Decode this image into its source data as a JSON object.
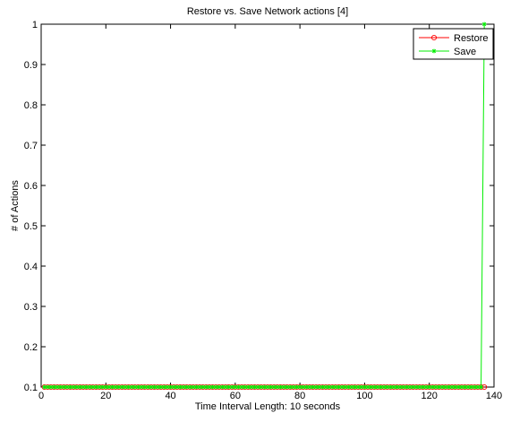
{
  "chart_data": {
    "type": "line",
    "title": "Restore vs. Save Network actions [4]",
    "xlabel": "Time Interval Length: 10 seconds",
    "ylabel": "# of Actions",
    "xlim": [
      0,
      140
    ],
    "ylim": [
      0.1,
      1
    ],
    "xticks": [
      0,
      20,
      40,
      60,
      80,
      100,
      120,
      140
    ],
    "xtick_labels": [
      "0",
      "20",
      "40",
      "60",
      "80",
      "100",
      "120",
      "140"
    ],
    "yticks": [
      0.1,
      0.2,
      0.3,
      0.4,
      0.5,
      0.6,
      0.7,
      0.8,
      0.9,
      1
    ],
    "ytick_labels": [
      "0.1",
      "0.2",
      "0.3",
      "0.4",
      "0.5",
      "0.6",
      "0.7",
      "0.8",
      "0.9",
      "1"
    ],
    "grid": false,
    "legend_position": "top-right",
    "x_range": [
      1,
      137
    ],
    "series": [
      {
        "name": "Restore",
        "color": "#ff0000",
        "marker": "circle",
        "values_rule": "0 at every interval from 1 to 137",
        "default_value": 0,
        "overrides": []
      },
      {
        "name": "Save",
        "color": "#00ee00",
        "marker": "star",
        "values_rule": "0 at every interval from 1 to 136, 1 at interval 137",
        "default_value": 0,
        "overrides": [
          [
            137,
            1
          ]
        ]
      }
    ]
  }
}
